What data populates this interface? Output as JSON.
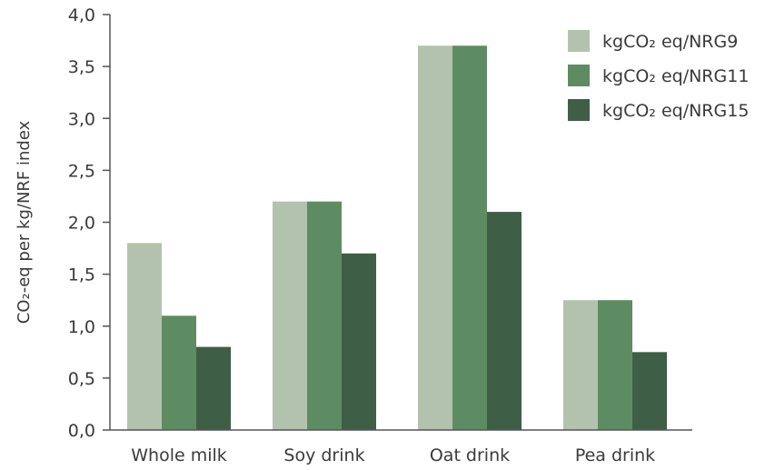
{
  "chart_data": {
    "type": "bar",
    "categories": [
      "Whole milk",
      "Soy drink",
      "Oat drink",
      "Pea drink"
    ],
    "series": [
      {
        "name": "kgCO₂ eq/NRG9",
        "color": "#b3c2ad",
        "values": [
          1.8,
          2.2,
          3.7,
          1.25
        ]
      },
      {
        "name": "kgCO₂ eq/NRG11",
        "color": "#5e8c62",
        "values": [
          1.1,
          2.2,
          3.7,
          1.25
        ]
      },
      {
        "name": "kgCO₂ eq/NRG15",
        "color": "#3f5e46",
        "values": [
          0.8,
          1.7,
          2.1,
          0.75
        ]
      }
    ],
    "ylabel": "CO₂-eq per kg/NRF index",
    "xlabel": "",
    "ylim": [
      0,
      4.0
    ],
    "yticks": [
      "0,0",
      "0,5",
      "1,0",
      "1,5",
      "2,0",
      "2,5",
      "3,0",
      "3,5",
      "4,0"
    ],
    "ytick_values": [
      0,
      0.5,
      1.0,
      1.5,
      2.0,
      2.5,
      3.0,
      3.5,
      4.0
    ],
    "legend_position": "top-right",
    "grid": false
  }
}
